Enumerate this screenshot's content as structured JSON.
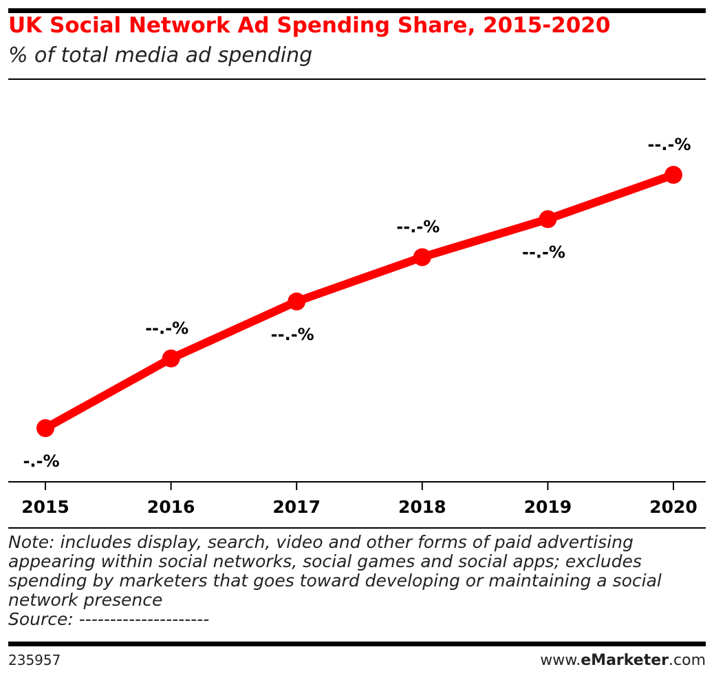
{
  "chart_data": {
    "type": "line",
    "title": "UK Social Network Ad Spending Share, 2015-2020",
    "subtitle": "% of total media ad spending",
    "categories": [
      "2015",
      "2016",
      "2017",
      "2018",
      "2019",
      "2020"
    ],
    "series": [
      {
        "name": "Social network ad spending share",
        "color": "#ff0000",
        "values": [
          9.5,
          12.8,
          15.5,
          17.6,
          19.4,
          21.5
        ],
        "value_labels": [
          "-.-%",
          "--.-%",
          "--.-%",
          "--.-%",
          "--.-%",
          "--.-%"
        ]
      }
    ],
    "note": "Note: includes display, search, video and other forms of paid advertising appearing within social networks, social games and social apps; excludes spending by marketers that goes toward developing or maintaining a social network presence",
    "source": "Source: ---------------------",
    "chart_id": "235957",
    "brand": [
      "www.",
      "eMarketer",
      ".com"
    ]
  }
}
